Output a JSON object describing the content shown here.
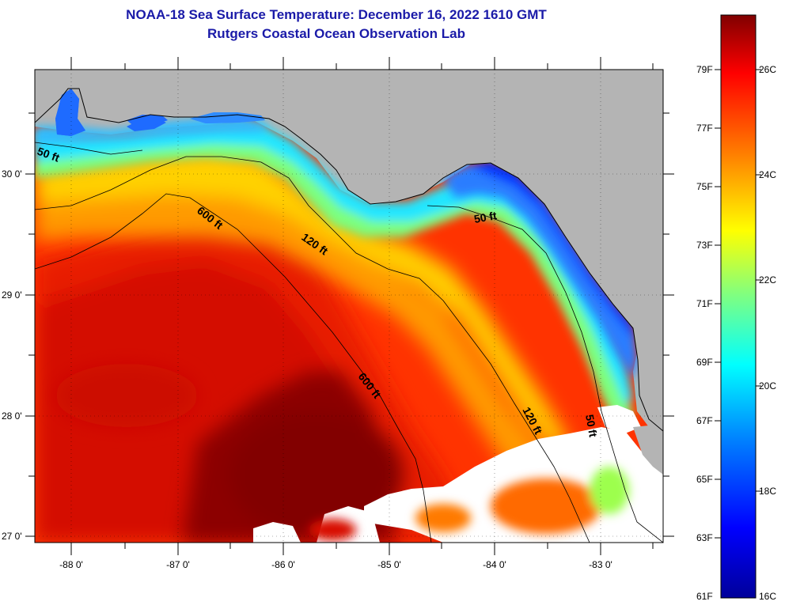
{
  "title": {
    "line1": "NOAA-18 Sea Surface Temperature:  December 16, 2022 1610 GMT",
    "line2": "Rutgers Coastal Ocean Observation Lab"
  },
  "map": {
    "lon_ticks": [
      "-88 0'",
      "-87 0'",
      "-86 0'",
      "-85 0'",
      "-84 0'",
      "-83 0'"
    ],
    "lat_ticks": [
      "30 0'",
      "29 0'",
      "28 0'",
      "27 0'"
    ],
    "lon_range": [
      -88.33,
      -82.47
    ],
    "lat_range": [
      26.93,
      30.83
    ],
    "land_color": "#b4b4b4",
    "cloud_color": "#ffffff",
    "contours": [
      {
        "label": "50 ft"
      },
      {
        "label": "120 ft"
      },
      {
        "label": "600 ft"
      }
    ]
  },
  "colorbar": {
    "fahrenheit_labels": [
      "79F",
      "77F",
      "75F",
      "73F",
      "71F",
      "69F",
      "67F",
      "65F",
      "63F",
      "61F"
    ],
    "celsius_labels": [
      "26C",
      "24C",
      "22C",
      "20C",
      "18C",
      "16C"
    ],
    "stops": [
      "#00009a",
      "#0000ff",
      "#0080ff",
      "#00ffff",
      "#80ff80",
      "#ffff00",
      "#ff8000",
      "#ff0000",
      "#800000"
    ]
  }
}
